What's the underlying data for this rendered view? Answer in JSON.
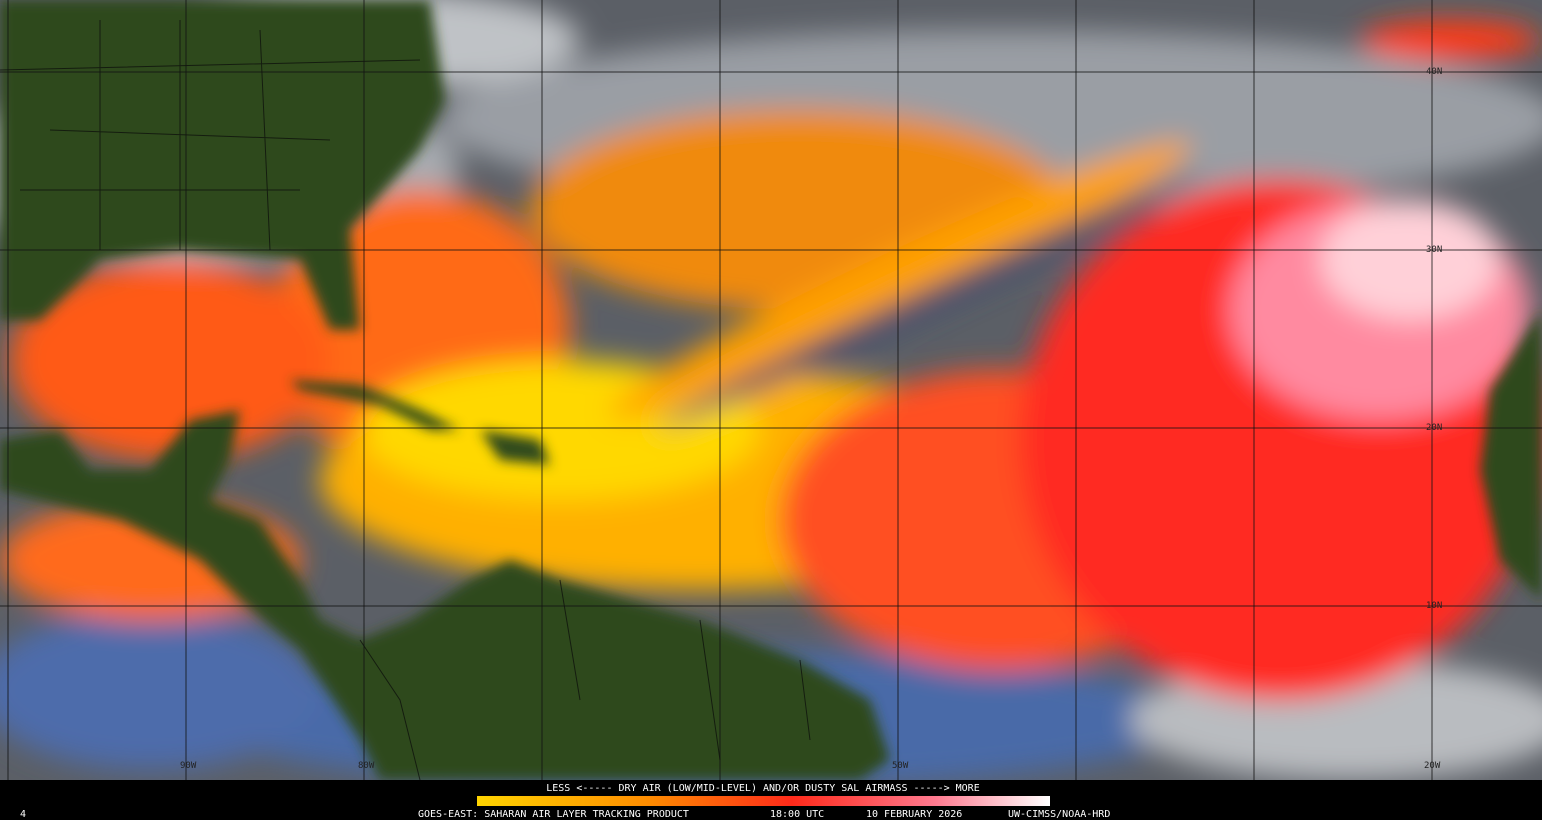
{
  "map": {
    "latitude_labels": [
      "40N",
      "30N",
      "20N",
      "10N"
    ],
    "longitude_labels": [
      "90W",
      "80W",
      "50W",
      "20W"
    ],
    "legend": {
      "caption": "LESS <----- DRY AIR (LOW/MID-LEVEL) AND/OR DUSTY SAL AIRMASS -----> MORE"
    },
    "footer": {
      "frame": "4",
      "product": "GOES-EAST: SAHARAN AIR LAYER TRACKING PRODUCT",
      "time": "18:00 UTC",
      "date": "10 FEBRUARY 2026",
      "credit": "UW-CIMSS/NOAA-HRD"
    }
  }
}
